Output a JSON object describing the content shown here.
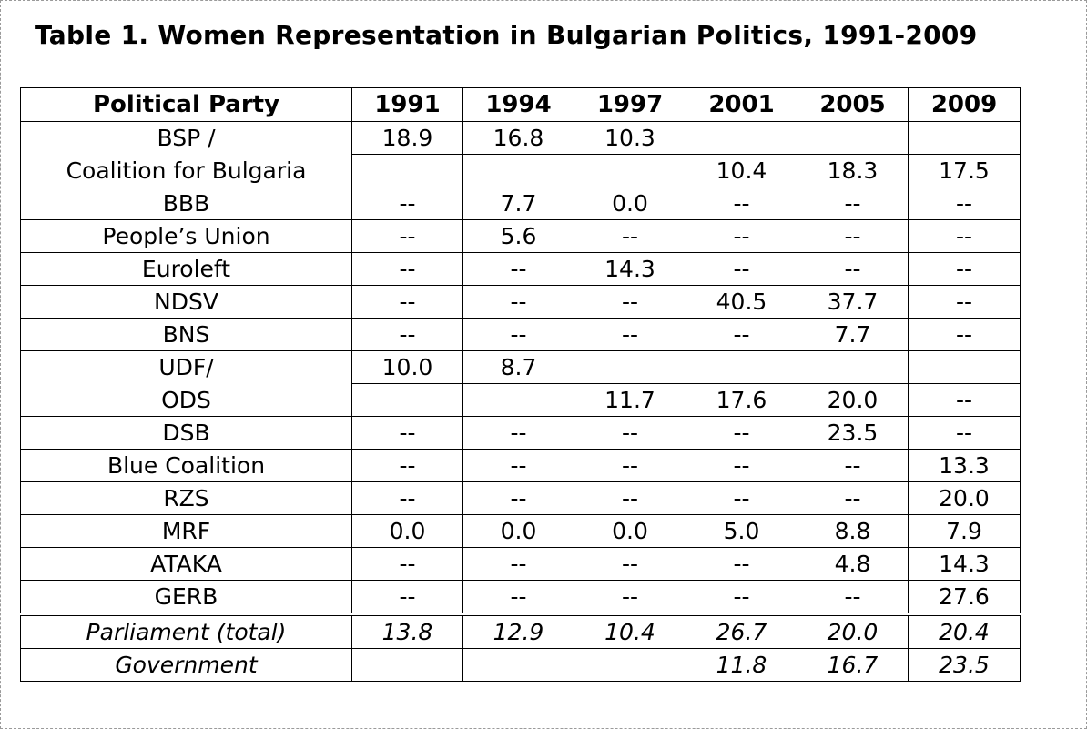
{
  "title": "Table 1. Women Representation in Bulgarian Politics, 1991-2009",
  "table": {
    "headers": [
      "Political Party",
      "1991",
      "1994",
      "1997",
      "2001",
      "2005",
      "2009"
    ],
    "rows": [
      {
        "party": "BSP /",
        "values": [
          "18.9",
          "16.8",
          "10.3",
          "",
          "",
          ""
        ]
      },
      {
        "party": "Coalition for Bulgaria",
        "values": [
          "",
          "",
          "",
          "10.4",
          "18.3",
          "17.5"
        ]
      },
      {
        "party": "BBB",
        "values": [
          "--",
          "7.7",
          "0.0",
          "--",
          "--",
          "--"
        ]
      },
      {
        "party": "People’s Union",
        "values": [
          "--",
          "5.6",
          "--",
          "--",
          "--",
          "--"
        ]
      },
      {
        "party": "Euroleft",
        "values": [
          "--",
          "--",
          "14.3",
          "--",
          "--",
          "--"
        ]
      },
      {
        "party": "NDSV",
        "values": [
          "--",
          "--",
          "--",
          "40.5",
          "37.7",
          "--"
        ]
      },
      {
        "party": "BNS",
        "values": [
          "--",
          "--",
          "--",
          "--",
          "7.7",
          "--"
        ]
      },
      {
        "party": "UDF/",
        "values": [
          "10.0",
          "8.7",
          "",
          "",
          "",
          ""
        ]
      },
      {
        "party": "ODS",
        "values": [
          "",
          "",
          "11.7",
          "17.6",
          "20.0",
          "--"
        ]
      },
      {
        "party": "DSB",
        "values": [
          "--",
          "--",
          "--",
          "--",
          "23.5",
          "--"
        ]
      },
      {
        "party": "Blue Coalition",
        "values": [
          "--",
          "--",
          "--",
          "--",
          "--",
          "13.3"
        ]
      },
      {
        "party": "RZS",
        "values": [
          "--",
          "--",
          "--",
          "--",
          "--",
          "20.0"
        ]
      },
      {
        "party": "MRF",
        "values": [
          "0.0",
          "0.0",
          "0.0",
          "5.0",
          "8.8",
          "7.9"
        ]
      },
      {
        "party": "ATAKA",
        "values": [
          "--",
          "--",
          "--",
          "--",
          "4.8",
          "14.3"
        ]
      },
      {
        "party": "GERB",
        "values": [
          "--",
          "--",
          "--",
          "--",
          "--",
          "27.6"
        ]
      }
    ],
    "summary": [
      {
        "label": "Parliament (total)",
        "values": [
          "13.8",
          "12.9",
          "10.4",
          "26.7",
          "20.0",
          "20.4"
        ]
      },
      {
        "label": "Government",
        "values": [
          "",
          "",
          "",
          "11.8",
          "16.7",
          "23.5"
        ]
      }
    ]
  }
}
